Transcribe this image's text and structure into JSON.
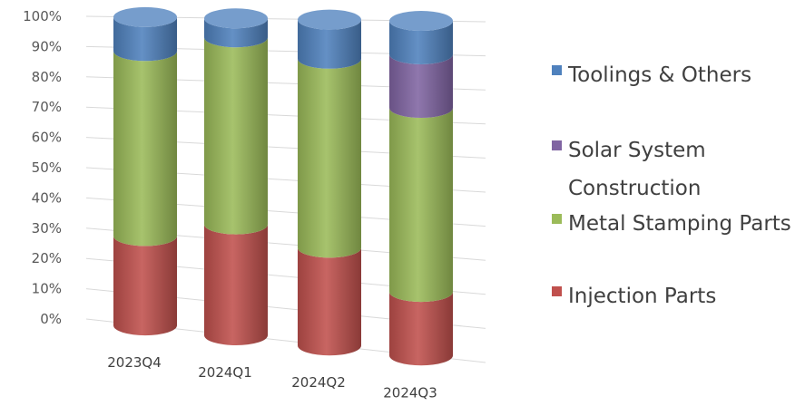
{
  "chart_data": {
    "type": "bar",
    "stacked": true,
    "normalized": true,
    "categories": [
      "2023Q4",
      "2024Q1",
      "2024Q2",
      "2024Q3"
    ],
    "series": [
      {
        "name": "Injection Parts",
        "color": "#C0504D",
        "values": [
          29,
          35,
          30,
          19
        ]
      },
      {
        "name": "Metal Stamping Parts",
        "color": "#9BBB59",
        "values": [
          60,
          59,
          58,
          55
        ]
      },
      {
        "name": "Solar System Construction",
        "color": "#8064A2",
        "values": [
          0,
          0,
          0,
          16
        ]
      },
      {
        "name": "Toolings & Others",
        "color": "#4F81BD",
        "values": [
          11,
          6,
          12,
          10
        ]
      }
    ],
    "yticks": [
      "0%",
      "10%",
      "20%",
      "30%",
      "40%",
      "50%",
      "60%",
      "70%",
      "80%",
      "90%",
      "100%"
    ],
    "ylim": [
      0,
      100
    ],
    "grid": true,
    "legend": {
      "position": "right",
      "order": [
        "Toolings & Others",
        "Solar System Construction",
        "Metal Stamping Parts",
        "Injection Parts"
      ],
      "labels": {
        "Toolings & Others": "Toolings & Others",
        "Solar System Construction": "Solar System Construction",
        "Metal Stamping Parts": "Metal Stamping Parts",
        "Injection Parts": "Injection Parts"
      }
    }
  }
}
